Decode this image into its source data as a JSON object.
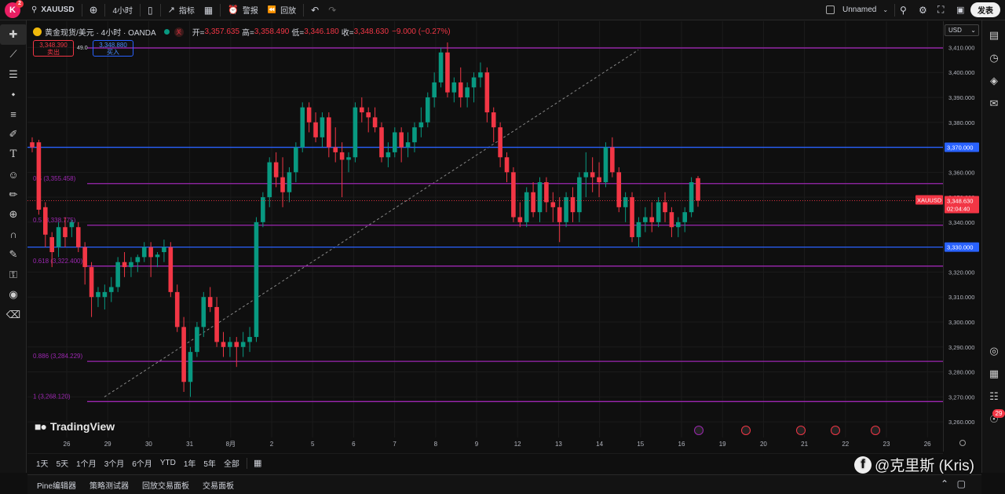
{
  "topbar": {
    "logo_letter": "K",
    "logo_badge": "2",
    "symbol": "XAUUSD",
    "interval": "4小时",
    "indicators": "指标",
    "alerts": "警报",
    "replay": "回放",
    "layout_name": "Unnamed",
    "publish": "发表"
  },
  "legend": {
    "title": "黄金现货/美元 · 4小时 · OANDA",
    "closed_mark": "关",
    "open_label": "开=",
    "open_val": "3,357.635",
    "high_label": "高=",
    "high_val": "3,358.490",
    "low_label": "低=",
    "low_val": "3,346.180",
    "close_label": "收=",
    "close_val": "3,348.630",
    "change_val": "−9.000 (−0.27%)",
    "sell_price": "3,348.390",
    "sell_label": "卖出",
    "spread": "49.0",
    "buy_price": "3,348.880",
    "buy_label": "买入"
  },
  "price_axis": {
    "currency": "USD",
    "ticks": [
      "3,410.000",
      "3,400.000",
      "3,390.000",
      "3,380.000",
      "3,370.000",
      "3,360.000",
      "3,350.000",
      "3,340.000",
      "3,330.000",
      "3,320.000",
      "3,310.000",
      "3,300.000",
      "3,290.000",
      "3,280.000",
      "3,270.000",
      "3,260.000"
    ],
    "badge_370": "3,370.000",
    "badge_330": "3,330.000",
    "symbol_tag": "XAUUSD",
    "current_price": "3,348.630",
    "countdown": "02:04:40"
  },
  "fib_labels": [
    {
      "text": "0.5 (3,355.458)",
      "price": 3355.458
    },
    {
      "text": "0.5 (3,338.775)",
      "price": 3338.775
    },
    {
      "text": "0.618 (3,322.400)",
      "price": 3322.4
    },
    {
      "text": "0.886 (3,284.229)",
      "price": 3284.229
    },
    {
      "text": "1 (3,268.120)",
      "price": 3268.12
    }
  ],
  "time_axis": {
    "labels": [
      "26",
      "29",
      "30",
      "31",
      "8月",
      "2",
      "5",
      "6",
      "7",
      "8",
      "9",
      "12",
      "13",
      "14",
      "15",
      "16",
      "19",
      "20",
      "21",
      "22",
      "23",
      "26"
    ]
  },
  "ranges": [
    "1天",
    "5天",
    "1个月",
    "3个月",
    "6个月",
    "YTD",
    "1年",
    "5年",
    "全部"
  ],
  "bottom_tabs": [
    "Pine编辑器",
    "策略测试器",
    "回放交易面板",
    "交易面板"
  ],
  "tv_brand": "TradingView",
  "watermark": "@克里斯 (Kris)",
  "right_badge": "29",
  "colors": {
    "up": "#089981",
    "down": "#f23645",
    "fib": "#9c27b0",
    "level": "#2962ff"
  },
  "chart_data": {
    "type": "candlestick",
    "symbol": "XAUUSD",
    "ylim": [
      3255,
      3418
    ],
    "candles": [
      [
        3372,
        3374,
        3368,
        3370
      ],
      [
        3372,
        3373,
        3343,
        3345
      ],
      [
        3346,
        3348,
        3330,
        3335
      ],
      [
        3334,
        3336,
        3322,
        3328
      ],
      [
        3330,
        3340,
        3326,
        3338
      ],
      [
        3338,
        3342,
        3330,
        3334
      ],
      [
        3338,
        3341,
        3334,
        3340
      ],
      [
        3338,
        3340,
        3328,
        3330
      ],
      [
        3330,
        3332,
        3315,
        3322
      ],
      [
        3322,
        3324,
        3302,
        3310
      ],
      [
        3310,
        3314,
        3306,
        3312
      ],
      [
        3310,
        3315,
        3305,
        3312
      ],
      [
        3312,
        3318,
        3308,
        3314
      ],
      [
        3314,
        3326,
        3312,
        3324
      ],
      [
        3324,
        3328,
        3318,
        3322
      ],
      [
        3322,
        3326,
        3318,
        3324
      ],
      [
        3324,
        3327,
        3320,
        3326
      ],
      [
        3326,
        3332,
        3324,
        3330
      ],
      [
        3330,
        3332,
        3318,
        3326
      ],
      [
        3326,
        3328,
        3322,
        3327
      ],
      [
        3328,
        3333,
        3324,
        3330
      ],
      [
        3330,
        3332,
        3310,
        3312
      ],
      [
        3312,
        3315,
        3296,
        3298
      ],
      [
        3298,
        3302,
        3272,
        3276
      ],
      [
        3276,
        3290,
        3270,
        3288
      ],
      [
        3288,
        3300,
        3286,
        3298
      ],
      [
        3298,
        3312,
        3294,
        3310
      ],
      [
        3310,
        3314,
        3304,
        3306
      ],
      [
        3306,
        3310,
        3290,
        3292
      ],
      [
        3292,
        3296,
        3286,
        3290
      ],
      [
        3290,
        3294,
        3286,
        3292
      ],
      [
        3292,
        3294,
        3282,
        3290
      ],
      [
        3290,
        3296,
        3286,
        3292
      ],
      [
        3292,
        3298,
        3288,
        3294
      ],
      [
        3294,
        3342,
        3292,
        3340
      ],
      [
        3340,
        3352,
        3338,
        3350
      ],
      [
        3350,
        3366,
        3346,
        3364
      ],
      [
        3364,
        3368,
        3354,
        3358
      ],
      [
        3358,
        3366,
        3346,
        3352
      ],
      [
        3352,
        3362,
        3348,
        3360
      ],
      [
        3360,
        3372,
        3356,
        3370
      ],
      [
        3370,
        3388,
        3368,
        3386
      ],
      [
        3386,
        3388,
        3376,
        3380
      ],
      [
        3380,
        3384,
        3372,
        3374
      ],
      [
        3374,
        3384,
        3370,
        3382
      ],
      [
        3382,
        3384,
        3366,
        3370
      ],
      [
        3370,
        3378,
        3364,
        3368
      ],
      [
        3368,
        3372,
        3350,
        3365
      ],
      [
        3365,
        3368,
        3360,
        3366
      ],
      [
        3366,
        3388,
        3364,
        3386
      ],
      [
        3386,
        3390,
        3380,
        3384
      ],
      [
        3384,
        3386,
        3376,
        3382
      ],
      [
        3382,
        3386,
        3376,
        3378
      ],
      [
        3378,
        3380,
        3364,
        3366
      ],
      [
        3366,
        3372,
        3362,
        3368
      ],
      [
        3368,
        3378,
        3366,
        3376
      ],
      [
        3376,
        3378,
        3364,
        3370
      ],
      [
        3370,
        3376,
        3366,
        3372
      ],
      [
        3372,
        3380,
        3368,
        3378
      ],
      [
        3378,
        3386,
        3374,
        3380
      ],
      [
        3380,
        3392,
        3378,
        3390
      ],
      [
        3390,
        3400,
        3386,
        3396
      ],
      [
        3396,
        3410,
        3394,
        3408
      ],
      [
        3408,
        3412,
        3390,
        3392
      ],
      [
        3392,
        3398,
        3388,
        3396
      ],
      [
        3396,
        3402,
        3386,
        3390
      ],
      [
        3390,
        3396,
        3386,
        3394
      ],
      [
        3394,
        3400,
        3388,
        3398
      ],
      [
        3398,
        3404,
        3394,
        3400
      ],
      [
        3400,
        3402,
        3380,
        3384
      ],
      [
        3384,
        3386,
        3372,
        3378
      ],
      [
        3378,
        3380,
        3362,
        3366
      ],
      [
        3366,
        3368,
        3356,
        3360
      ],
      [
        3360,
        3362,
        3340,
        3342
      ],
      [
        3342,
        3348,
        3338,
        3340
      ],
      [
        3340,
        3354,
        3338,
        3352
      ],
      [
        3352,
        3356,
        3342,
        3344
      ],
      [
        3344,
        3358,
        3340,
        3356
      ],
      [
        3356,
        3358,
        3344,
        3348
      ],
      [
        3348,
        3352,
        3340,
        3346
      ],
      [
        3346,
        3350,
        3332,
        3340
      ],
      [
        3340,
        3352,
        3338,
        3350
      ],
      [
        3350,
        3354,
        3340,
        3344
      ],
      [
        3344,
        3360,
        3340,
        3358
      ],
      [
        3358,
        3368,
        3350,
        3360
      ],
      [
        3360,
        3366,
        3352,
        3358
      ],
      [
        3358,
        3364,
        3350,
        3356
      ],
      [
        3356,
        3372,
        3354,
        3370
      ],
      [
        3370,
        3374,
        3358,
        3360
      ],
      [
        3360,
        3362,
        3344,
        3346
      ],
      [
        3346,
        3352,
        3340,
        3350
      ],
      [
        3350,
        3352,
        3332,
        3334
      ],
      [
        3334,
        3342,
        3330,
        3340
      ],
      [
        3340,
        3346,
        3336,
        3342
      ],
      [
        3342,
        3348,
        3336,
        3340
      ],
      [
        3340,
        3350,
        3338,
        3348
      ],
      [
        3348,
        3352,
        3340,
        3344
      ],
      [
        3344,
        3346,
        3334,
        3338
      ],
      [
        3338,
        3342,
        3334,
        3340
      ],
      [
        3340,
        3346,
        3336,
        3344
      ],
      [
        3344,
        3358,
        3342,
        3356
      ],
      [
        3357.635,
        3358.49,
        3346.18,
        3348.63
      ]
    ],
    "horizontal_levels": [
      3409.8,
      3370,
      3355.458,
      3338.775,
      3330,
      3322.4,
      3284.229,
      3268.12
    ]
  }
}
